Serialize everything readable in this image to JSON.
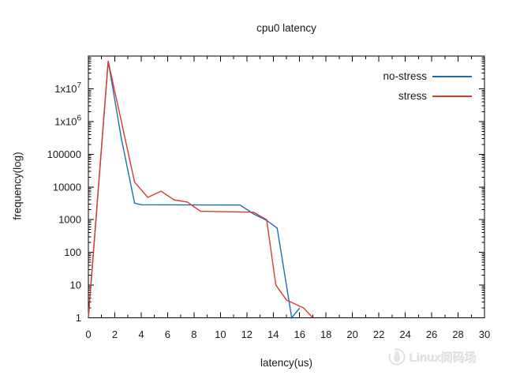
{
  "title": "cpu0 latency",
  "axes": {
    "xlabel": "latency(us)",
    "ylabel": "frequency(log)"
  },
  "legend": {
    "position": "top-right",
    "entries": [
      {
        "label": "no-stress",
        "color": "#1b6eae"
      },
      {
        "label": "stress",
        "color": "#d93a2b"
      }
    ]
  },
  "watermark": {
    "text": "Linux阅码场"
  },
  "chart_data": {
    "type": "line",
    "title": "cpu0 latency",
    "xlabel": "latency(us)",
    "ylabel": "frequency(log)",
    "xlim": [
      0,
      30
    ],
    "ylog": true,
    "ylim": [
      1,
      100000000
    ],
    "xtick_major_step": 2,
    "xtick_minor_step": 1,
    "xtick_labels": [
      "0",
      "2",
      "4",
      "6",
      "8",
      "10",
      "12",
      "14",
      "16",
      "18",
      "20",
      "22",
      "24",
      "26",
      "28",
      "30"
    ],
    "ytick_labels": [
      "1",
      "10",
      "100",
      "1000",
      "10000",
      "100000",
      "1x10^6",
      "1x10^7"
    ],
    "grid": false,
    "legend_position": "top-right",
    "series": [
      {
        "name": "no-stress",
        "color": "#1b6eae",
        "points": [
          [
            0,
            1
          ],
          [
            1.5,
            70000000
          ],
          [
            2.5,
            300000
          ],
          [
            3.5,
            3200
          ],
          [
            4,
            2850
          ],
          [
            11.5,
            2800
          ],
          [
            12.5,
            1500
          ],
          [
            13.5,
            950
          ],
          [
            14.3,
            550
          ],
          [
            15.4,
            1
          ],
          [
            16,
            2
          ]
        ]
      },
      {
        "name": "stress",
        "color": "#d93a2b",
        "points": [
          [
            0,
            1
          ],
          [
            1.5,
            70000000
          ],
          [
            3.5,
            14000
          ],
          [
            4.5,
            4800
          ],
          [
            5.5,
            7400
          ],
          [
            6.5,
            4000
          ],
          [
            7.5,
            3450
          ],
          [
            8.5,
            1800
          ],
          [
            12.5,
            1700
          ],
          [
            13.5,
            1000
          ],
          [
            14.2,
            10
          ],
          [
            15,
            3.5
          ],
          [
            16.3,
            2
          ],
          [
            17,
            1
          ]
        ]
      }
    ]
  }
}
